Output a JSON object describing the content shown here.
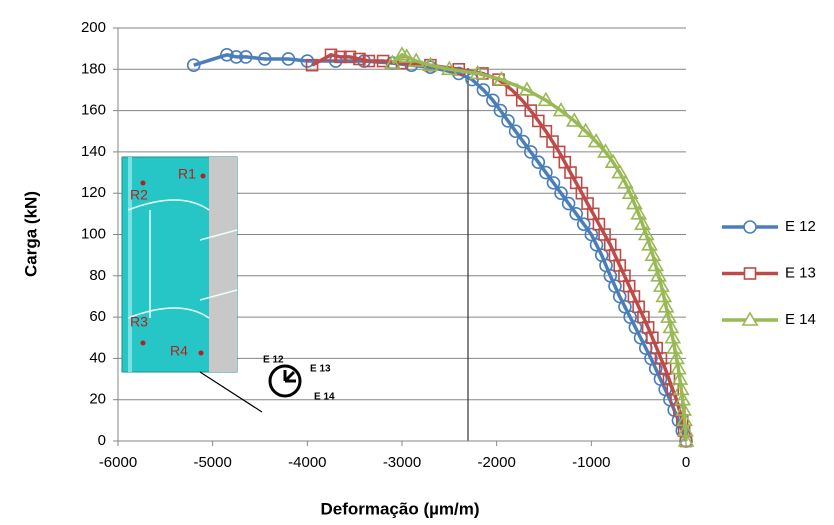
{
  "chart_data": {
    "type": "line",
    "xlabel": "Deformação (µm/m)",
    "ylabel": "Carga (kN)",
    "xlim": [
      -6000,
      0
    ],
    "xticks": [
      -6000,
      -5000,
      -4000,
      -3000,
      -2000,
      -1000,
      0
    ],
    "ylim": [
      0,
      200
    ],
    "yticks": [
      0,
      20,
      40,
      60,
      80,
      100,
      120,
      140,
      160,
      180,
      200
    ],
    "grid": true,
    "legend": "right",
    "annotations": [
      "R1",
      "R2",
      "R3",
      "R4",
      "E 12",
      "E 13",
      "E 14"
    ],
    "series": [
      {
        "name": "E 12",
        "color": "#4a7ebb",
        "marker": "circle",
        "x": [
          0,
          -40,
          -80,
          -125,
          -170,
          -220,
          -270,
          -320,
          -370,
          -425,
          -480,
          -535,
          -590,
          -645,
          -700,
          -750,
          -800,
          -845,
          -890,
          -945,
          -1000,
          -1080,
          -1160,
          -1240,
          -1320,
          -1400,
          -1480,
          -1560,
          -1640,
          -1720,
          -1800,
          -1880,
          -1960,
          -2040,
          -2140,
          -2260,
          -2400,
          -2700,
          -2900,
          -3100,
          -3400,
          -3700,
          -4000,
          -4200,
          -4450,
          -4650,
          -4750,
          -4850,
          -5200
        ],
        "values": [
          0,
          5,
          10,
          15,
          20,
          25,
          30,
          35,
          40,
          45,
          50,
          55,
          60,
          65,
          70,
          75,
          80,
          85,
          90,
          95,
          100,
          105,
          110,
          115,
          120,
          125,
          130,
          135,
          140,
          145,
          150,
          155,
          160,
          165,
          170,
          175,
          178,
          181,
          182,
          183,
          184,
          184,
          184,
          185,
          185,
          186,
          186,
          187,
          182
        ]
      },
      {
        "name": "E 13",
        "color": "#be4b48",
        "marker": "square",
        "x": [
          0,
          -20,
          -40,
          -70,
          -100,
          -140,
          -180,
          -220,
          -265,
          -310,
          -355,
          -400,
          -450,
          -500,
          -550,
          -600,
          -650,
          -700,
          -750,
          -800,
          -860,
          -920,
          -980,
          -1040,
          -1100,
          -1160,
          -1220,
          -1280,
          -1340,
          -1410,
          -1480,
          -1560,
          -1640,
          -1730,
          -1840,
          -1980,
          -2150,
          -2400,
          -2700,
          -3000,
          -3200,
          -3350,
          -3450,
          -3550,
          -3650,
          -3750,
          -3950
        ],
        "values": [
          0,
          5,
          10,
          15,
          20,
          25,
          30,
          35,
          40,
          45,
          50,
          55,
          60,
          65,
          70,
          75,
          80,
          85,
          90,
          95,
          100,
          105,
          110,
          115,
          120,
          125,
          130,
          135,
          140,
          145,
          150,
          155,
          160,
          165,
          170,
          175,
          178,
          180,
          182,
          183,
          184,
          184,
          185,
          186,
          186,
          187,
          182
        ]
      },
      {
        "name": "E 14",
        "color": "#98b954",
        "marker": "triangle",
        "x": [
          0,
          -5,
          -15,
          -25,
          -35,
          -50,
          -65,
          -80,
          -100,
          -120,
          -140,
          -160,
          -185,
          -210,
          -235,
          -260,
          -290,
          -320,
          -350,
          -385,
          -420,
          -460,
          -500,
          -545,
          -590,
          -640,
          -700,
          -770,
          -850,
          -950,
          -1060,
          -1180,
          -1320,
          -1480,
          -1680,
          -1950,
          -2200,
          -2500,
          -2700,
          -2850,
          -2950,
          -3000,
          -3100
        ],
        "values": [
          0,
          5,
          10,
          15,
          20,
          25,
          30,
          35,
          40,
          45,
          50,
          55,
          60,
          65,
          70,
          75,
          80,
          85,
          90,
          95,
          100,
          105,
          110,
          115,
          120,
          125,
          130,
          135,
          140,
          145,
          150,
          155,
          160,
          165,
          170,
          175,
          178,
          180,
          182,
          184,
          186,
          187,
          183
        ]
      }
    ]
  }
}
